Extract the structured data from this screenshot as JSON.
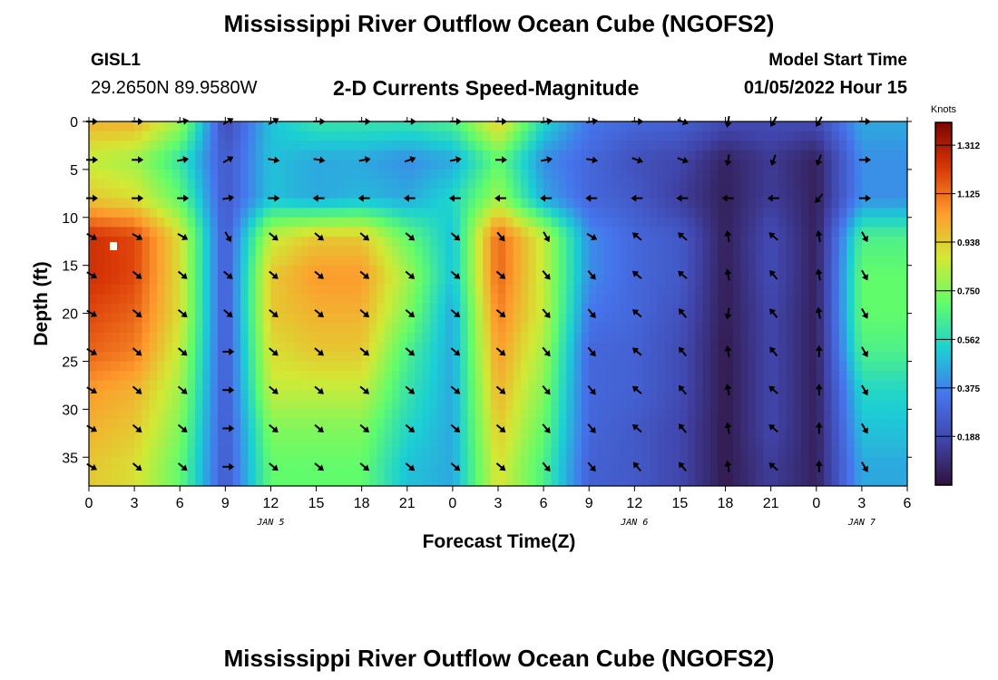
{
  "header": {
    "title": "Mississippi River Outflow Ocean Cube (NGOFS2)",
    "station": "GISL1",
    "coords": "29.2650N  89.9580W",
    "subtitle": "2-D Currents Speed-Magnitude",
    "model_start_label": "Model Start Time",
    "model_start_value": "01/05/2022 Hour 15",
    "footer_title": "Mississippi River Outflow Ocean Cube (NGOFS2)"
  },
  "chart_data": {
    "type": "heatmap",
    "xlabel": "Forecast Time(Z)",
    "ylabel": "Depth (ft)",
    "x_range_hours": [
      0,
      54
    ],
    "y_range": [
      0,
      38
    ],
    "y_ticks": [
      0,
      5,
      10,
      15,
      20,
      25,
      30,
      35
    ],
    "x_ticks": [
      {
        "hour": 0,
        "label": "0"
      },
      {
        "hour": 3,
        "label": "3"
      },
      {
        "hour": 6,
        "label": "6"
      },
      {
        "hour": 9,
        "label": "9"
      },
      {
        "hour": 12,
        "label": "12"
      },
      {
        "hour": 15,
        "label": "15"
      },
      {
        "hour": 18,
        "label": "18"
      },
      {
        "hour": 21,
        "label": "21"
      },
      {
        "hour": 24,
        "label": "0"
      },
      {
        "hour": 27,
        "label": "3"
      },
      {
        "hour": 30,
        "label": "6"
      },
      {
        "hour": 33,
        "label": "9"
      },
      {
        "hour": 36,
        "label": "12"
      },
      {
        "hour": 39,
        "label": "15"
      },
      {
        "hour": 42,
        "label": "18"
      },
      {
        "hour": 45,
        "label": "21"
      },
      {
        "hour": 48,
        "label": "0"
      },
      {
        "hour": 51,
        "label": "3"
      },
      {
        "hour": 54,
        "label": "6"
      }
    ],
    "date_labels": [
      {
        "hour": 12,
        "label": "JAN 5"
      },
      {
        "hour": 36,
        "label": "JAN 6"
      },
      {
        "hour": 51,
        "label": "JAN 7"
      }
    ],
    "colorbar": {
      "unit": "Knots",
      "min": 0.0,
      "max": 1.4,
      "ticks": [
        "1.312",
        "1.125",
        "0.938",
        "0.750",
        "0.562",
        "0.375",
        "0.188"
      ],
      "stops": [
        "#30123b",
        "#4145ab",
        "#4675ed",
        "#1bcfd4",
        "#61fc6c",
        "#d2e935",
        "#fe9b2d",
        "#d93806",
        "#7a0403"
      ]
    },
    "depth_levels_ft": [
      0,
      4,
      8,
      12,
      16,
      20,
      24,
      28,
      32,
      36
    ],
    "time_columns_hours": [
      0,
      3,
      6,
      9,
      12,
      15,
      18,
      21,
      24,
      27,
      30,
      33,
      36,
      39,
      42,
      45,
      48,
      51
    ],
    "speed_knots": [
      [
        1.0,
        1.0,
        0.8,
        0.2,
        0.5,
        0.6,
        0.6,
        0.6,
        0.65,
        0.95,
        0.55,
        0.35,
        0.3,
        0.28,
        0.2,
        0.2,
        0.2,
        0.45
      ],
      [
        0.85,
        0.8,
        0.6,
        0.25,
        0.5,
        0.45,
        0.45,
        0.4,
        0.45,
        0.7,
        0.4,
        0.3,
        0.22,
        0.18,
        0.06,
        0.14,
        0.05,
        0.4
      ],
      [
        0.95,
        0.9,
        0.7,
        0.25,
        0.5,
        0.45,
        0.48,
        0.45,
        0.55,
        0.8,
        0.45,
        0.3,
        0.25,
        0.15,
        0.05,
        0.15,
        0.05,
        0.4
      ],
      [
        1.25,
        1.2,
        0.9,
        0.25,
        0.85,
        0.95,
        0.95,
        0.7,
        0.5,
        1.15,
        0.85,
        0.4,
        0.3,
        0.25,
        0.05,
        0.2,
        0.05,
        0.65
      ],
      [
        1.25,
        1.2,
        0.9,
        0.25,
        0.95,
        1.05,
        1.05,
        0.8,
        0.5,
        1.15,
        0.85,
        0.4,
        0.3,
        0.25,
        0.04,
        0.2,
        0.05,
        0.7
      ],
      [
        1.2,
        1.15,
        0.9,
        0.25,
        0.95,
        1.0,
        1.0,
        0.75,
        0.45,
        1.1,
        0.85,
        0.35,
        0.3,
        0.22,
        0.04,
        0.18,
        0.05,
        0.7
      ],
      [
        1.15,
        1.1,
        0.85,
        0.25,
        0.9,
        0.95,
        0.95,
        0.65,
        0.45,
        1.05,
        0.8,
        0.3,
        0.28,
        0.2,
        0.03,
        0.18,
        0.05,
        0.65
      ],
      [
        1.05,
        1.0,
        0.8,
        0.25,
        0.85,
        0.85,
        0.85,
        0.6,
        0.45,
        1.0,
        0.75,
        0.3,
        0.28,
        0.2,
        0.03,
        0.18,
        0.05,
        0.55
      ],
      [
        1.0,
        0.95,
        0.75,
        0.25,
        0.75,
        0.75,
        0.75,
        0.55,
        0.45,
        0.95,
        0.7,
        0.3,
        0.25,
        0.18,
        0.03,
        0.18,
        0.05,
        0.5
      ],
      [
        0.95,
        0.9,
        0.7,
        0.25,
        0.7,
        0.7,
        0.7,
        0.5,
        0.45,
        0.9,
        0.65,
        0.28,
        0.25,
        0.18,
        0.03,
        0.15,
        0.05,
        0.45
      ]
    ],
    "direction_deg": [
      [
        90,
        90,
        80,
        60,
        60,
        90,
        90,
        90,
        90,
        90,
        80,
        80,
        90,
        110,
        190,
        210,
        210,
        90
      ],
      [
        90,
        90,
        80,
        60,
        100,
        100,
        80,
        70,
        80,
        90,
        80,
        100,
        110,
        110,
        190,
        200,
        200,
        90
      ],
      [
        90,
        90,
        90,
        80,
        90,
        270,
        270,
        270,
        270,
        270,
        270,
        270,
        270,
        270,
        270,
        270,
        220,
        90
      ],
      [
        120,
        120,
        120,
        150,
        130,
        130,
        130,
        130,
        130,
        140,
        150,
        120,
        310,
        310,
        350,
        310,
        350,
        150
      ],
      [
        120,
        130,
        130,
        130,
        130,
        130,
        130,
        130,
        130,
        130,
        140,
        140,
        310,
        310,
        350,
        320,
        350,
        150
      ],
      [
        120,
        130,
        130,
        130,
        130,
        130,
        130,
        130,
        130,
        130,
        140,
        140,
        310,
        320,
        190,
        320,
        350,
        150
      ],
      [
        120,
        130,
        130,
        90,
        130,
        130,
        130,
        130,
        130,
        130,
        140,
        140,
        310,
        320,
        350,
        320,
        0,
        150
      ],
      [
        120,
        130,
        130,
        90,
        130,
        130,
        130,
        130,
        130,
        130,
        140,
        140,
        310,
        320,
        350,
        310,
        0,
        150
      ],
      [
        120,
        130,
        130,
        90,
        130,
        130,
        130,
        130,
        130,
        130,
        140,
        140,
        310,
        320,
        350,
        310,
        0,
        150
      ],
      [
        120,
        130,
        130,
        90,
        130,
        130,
        130,
        130,
        130,
        130,
        140,
        140,
        320,
        320,
        350,
        310,
        0,
        150
      ]
    ]
  }
}
